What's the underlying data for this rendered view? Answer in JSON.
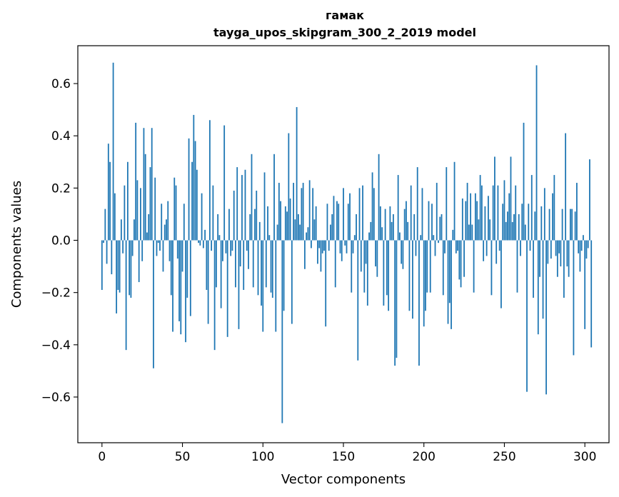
{
  "chart_data": {
    "type": "bar",
    "title": "гамак",
    "subtitle": "tayga_upos_skipgram_300_2_2019 model",
    "xlabel": "Vector components",
    "ylabel": "Components values",
    "xlim": [
      -15,
      315
    ],
    "ylim": [
      -0.775,
      0.745
    ],
    "xticks": [
      0,
      50,
      100,
      150,
      200,
      250,
      300
    ],
    "yticks": [
      -0.6,
      -0.4,
      -0.2,
      0.0,
      0.2,
      0.4,
      0.6
    ],
    "ytick_labels": [
      "−0.6",
      "−0.4",
      "−0.2",
      "0.0",
      "0.2",
      "0.4",
      "0.6"
    ],
    "bar_color": "#1f77b4",
    "values": [
      -0.19,
      -0.01,
      0.12,
      -0.09,
      0.37,
      0.3,
      -0.13,
      0.68,
      0.18,
      -0.28,
      -0.19,
      -0.2,
      0.08,
      -0.05,
      0.21,
      -0.42,
      0.3,
      -0.21,
      -0.22,
      -0.06,
      0.08,
      0.45,
      0.23,
      -0.16,
      0.2,
      -0.08,
      0.43,
      0.33,
      0.03,
      0.1,
      0.28,
      0.43,
      -0.49,
      0.24,
      -0.06,
      -0.01,
      -0.04,
      0.14,
      -0.12,
      0.06,
      0.08,
      0.15,
      -0.08,
      -0.21,
      -0.35,
      0.24,
      0.21,
      -0.07,
      -0.31,
      -0.36,
      -0.12,
      0.14,
      -0.39,
      -0.22,
      0.39,
      -0.29,
      0.3,
      0.48,
      0.38,
      0.27,
      -0.01,
      -0.02,
      0.18,
      -0.03,
      0.04,
      -0.19,
      -0.32,
      0.46,
      -0.04,
      0.21,
      -0.42,
      -0.18,
      0.1,
      0.02,
      -0.26,
      -0.08,
      0.44,
      -0.05,
      -0.37,
      0.12,
      -0.06,
      -0.04,
      0.19,
      -0.18,
      0.28,
      -0.34,
      -0.1,
      0.25,
      -0.19,
      0.27,
      -0.04,
      -0.11,
      0.1,
      0.33,
      -0.18,
      0.12,
      0.19,
      -0.21,
      0.07,
      -0.25,
      -0.35,
      0.26,
      -0.18,
      0.13,
      0.02,
      -0.2,
      -0.22,
      0.33,
      -0.35,
      0.06,
      0.22,
      0.15,
      -0.7,
      -0.27,
      0.13,
      0.11,
      0.41,
      0.16,
      -0.32,
      0.22,
      0.08,
      0.51,
      0.1,
      0.06,
      0.2,
      0.22,
      -0.11,
      0.03,
      0.05,
      0.23,
      -0.03,
      0.2,
      0.08,
      0.13,
      -0.09,
      -0.03,
      -0.12,
      -0.05,
      -0.04,
      -0.33,
      0.14,
      -0.04,
      0.06,
      0.1,
      0.17,
      -0.18,
      0.15,
      0.14,
      -0.05,
      -0.08,
      0.2,
      -0.02,
      -0.05,
      0.14,
      0.18,
      -0.2,
      -0.05,
      0.02,
      0.1,
      -0.46,
      0.2,
      -0.12,
      0.21,
      -0.2,
      -0.09,
      -0.25,
      0.03,
      0.07,
      0.26,
      0.2,
      -0.1,
      -0.14,
      0.33,
      0.13,
      0.05,
      -0.25,
      0.12,
      -0.21,
      -0.27,
      0.13,
      0.07,
      0.1,
      -0.48,
      -0.45,
      0.25,
      0.03,
      -0.09,
      -0.11,
      0.12,
      0.15,
      0.07,
      -0.27,
      0.21,
      -0.3,
      0.1,
      -0.06,
      0.28,
      -0.48,
      0.02,
      0.2,
      -0.33,
      -0.27,
      -0.2,
      0.15,
      -0.2,
      0.14,
      0.02,
      -0.06,
      0.22,
      -0.01,
      0.09,
      0.1,
      -0.21,
      -0.05,
      0.28,
      -0.32,
      -0.24,
      -0.34,
      0.04,
      0.3,
      -0.05,
      -0.04,
      -0.15,
      -0.18,
      0.16,
      -0.14,
      0.15,
      0.22,
      0.06,
      0.18,
      0.06,
      -0.2,
      0.18,
      0.15,
      0.08,
      0.25,
      0.21,
      -0.08,
      0.13,
      -0.06,
      0.17,
      0.08,
      -0.21,
      0.21,
      0.32,
      -0.09,
      0.21,
      -0.04,
      -0.26,
      0.14,
      0.23,
      0.07,
      0.11,
      0.18,
      0.32,
      0.07,
      0.1,
      0.21,
      -0.2,
      0.1,
      -0.06,
      0.14,
      0.45,
      0.06,
      -0.58,
      0.14,
      -0.04,
      0.25,
      -0.22,
      0.11,
      0.67,
      -0.36,
      -0.14,
      0.13,
      -0.3,
      0.2,
      -0.59,
      -0.09,
      0.12,
      -0.07,
      0.18,
      0.25,
      -0.06,
      -0.14,
      -0.05,
      -0.1,
      0.12,
      -0.22,
      0.41,
      -0.1,
      -0.14,
      0.12,
      0.12,
      -0.44,
      0.11,
      0.22,
      -0.05,
      -0.12,
      -0.04,
      0.02,
      -0.34,
      -0.07,
      -0.03,
      0.31,
      -0.41
    ]
  }
}
